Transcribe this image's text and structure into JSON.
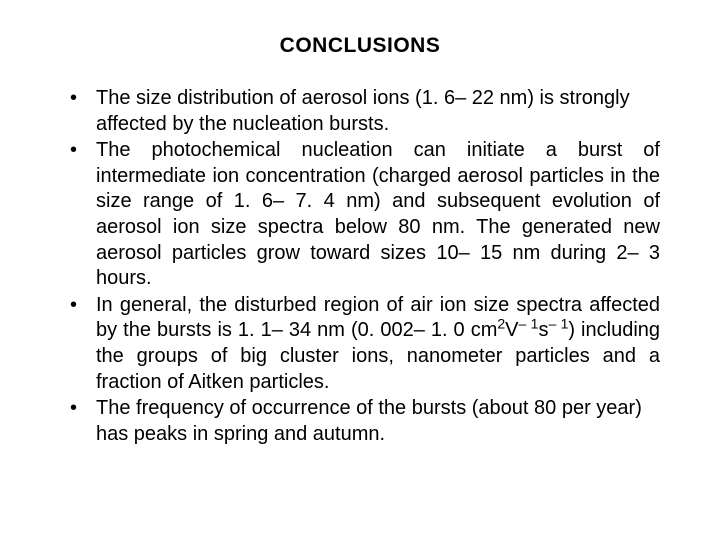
{
  "title": "CONCLUSIONS",
  "bullets": [
    {
      "text": "The size distribution of aerosol ions (1. 6– 22 nm) is strongly affected by the nucleation bursts.",
      "justify": false
    },
    {
      "text": "The photochemical nucleation can initiate a burst of intermediate ion concentration (charged aerosol particles in the size range of 1. 6– 7. 4 nm) and subsequent evolution of aerosol ion size spectra below 80 nm. The generated new aerosol particles grow toward sizes 10– 15 nm during 2– 3 hours.",
      "justify": true
    },
    {
      "html": "In general, the disturbed region of air ion size spectra affected by the bursts is 1. 1– 34 nm (0. 002– 1. 0 cm<sup>2</sup>V<sup>– 1</sup>s<sup>– 1</sup>) including the groups of big cluster ions, nanometer particles and a fraction of Aitken particles.",
      "justify_first": true
    },
    {
      "text": "The frequency of occurrence of the bursts (about 80 per year) has peaks in spring and autumn.",
      "justify": false
    }
  ]
}
